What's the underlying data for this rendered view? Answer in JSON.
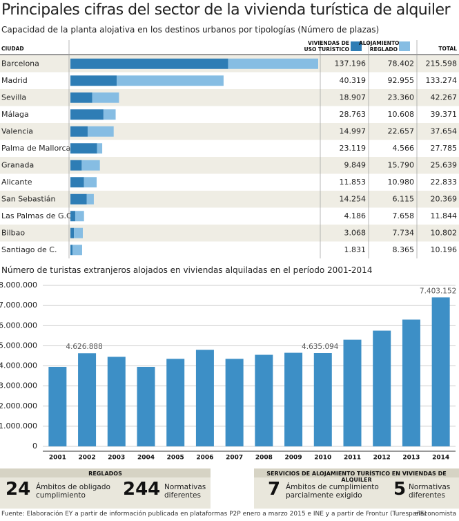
{
  "title": "Principales cifras del sector de la vivienda turística de alquiler",
  "chart_data": [
    {
      "type": "stacked-bar-table",
      "title": "Capacidad de la planta alojativa en los destinos urbanos por tipologías (Número de plazas)",
      "category_label": "CIUDAD",
      "categories": [
        "Barcelona",
        "Madrid",
        "Sevilla",
        "Málaga",
        "Valencia",
        "Palma de Mallorca",
        "Granada",
        "Alicante",
        "San Sebastián",
        "Las Palmas de G.C.",
        "Bilbao",
        "Santiago de C."
      ],
      "series": [
        {
          "name": "VIVIENDAS DE USO TURÍSTICO",
          "color": "#2e7db5",
          "values": [
            137196,
            40319,
            18907,
            28763,
            14997,
            23119,
            9849,
            11853,
            14254,
            4186,
            3068,
            1831
          ],
          "value_labels": [
            "137.196",
            "40.319",
            "18.907",
            "28.763",
            "14.997",
            "23.119",
            "9.849",
            "11.853",
            "14.254",
            "4.186",
            "3.068",
            "1.831"
          ]
        },
        {
          "name": "ALOJAMIENTO REGLADO",
          "color": "#86bde3",
          "values": [
            78402,
            92955,
            23360,
            10608,
            22657,
            4566,
            15790,
            10980,
            6115,
            7658,
            7734,
            8365
          ],
          "value_labels": [
            "78.402",
            "92.955",
            "23.360",
            "10.608",
            "22.657",
            "4.566",
            "15.790",
            "10.980",
            "6.115",
            "7.658",
            "7.734",
            "8.365"
          ]
        }
      ],
      "totals": {
        "name": "TOTAL",
        "values": [
          215598,
          133274,
          42267,
          39371,
          37654,
          27785,
          25639,
          22833,
          20369,
          11844,
          10802,
          10196
        ],
        "value_labels": [
          "215.598",
          "133.274",
          "42.267",
          "39.371",
          "37.654",
          "27.785",
          "25.639",
          "22.833",
          "20.369",
          "11.844",
          "10.802",
          "10.196"
        ]
      }
    },
    {
      "type": "bar",
      "title": "Número de turistas extranjeros alojados en viviendas alquiladas en el período 2001-2014",
      "categories": [
        "2001",
        "2002",
        "2003",
        "2004",
        "2005",
        "2006",
        "2007",
        "2008",
        "2009",
        "2010",
        "2011",
        "2012",
        "2013",
        "2014"
      ],
      "values": [
        3950000,
        4626888,
        4450000,
        3950000,
        4350000,
        4800000,
        4350000,
        4550000,
        4650000,
        4635094,
        5300000,
        5750000,
        6300000,
        7403152
      ],
      "value_labels": [
        null,
        "4.626.888",
        null,
        null,
        null,
        null,
        null,
        null,
        null,
        "4.635.094",
        null,
        null,
        null,
        "7.403.152"
      ],
      "color": "#3d8fc6",
      "ylim": [
        0,
        8000000
      ],
      "yticks": [
        0,
        {
          "value": 1000000,
          "label": "1.000.000"
        },
        {
          "value": 2000000,
          "label": "2.000.000"
        },
        {
          "value": 3000000,
          "label": "3.000.000"
        },
        {
          "value": 4000000,
          "label": "4.000.000"
        },
        {
          "value": 5000000,
          "label": "5.000.000"
        },
        {
          "value": 6000000,
          "label": "6.000.000"
        },
        {
          "value": 7000000,
          "label": "7.000.000"
        },
        {
          "value": 8000000,
          "label": "8.000.000"
        }
      ],
      "grid": true
    }
  ],
  "panels": [
    {
      "heading": "REGLADOS",
      "items": [
        {
          "number": 24,
          "text": "Ámbitos de obligado cumplimiento"
        },
        {
          "number": 244,
          "text": "Normativas diferentes"
        }
      ]
    },
    {
      "heading": "SERVICIOS DE ALOJAMIENTO TURÍSTICO EN VIVIENDAS DE ALQUILER",
      "items": [
        {
          "number": 7,
          "text": "Ámbitos de cumplimiento parcialmente exigido"
        },
        {
          "number": 5,
          "text": "Normativas diferentes"
        }
      ]
    }
  ],
  "footer": {
    "source": "Fuente: Elaboración EY a partir de información publicada en plataformas P2P enero a marzo 2015 e INE y a partir de Frontur (Turespaña)",
    "credit": "elEconomista"
  }
}
